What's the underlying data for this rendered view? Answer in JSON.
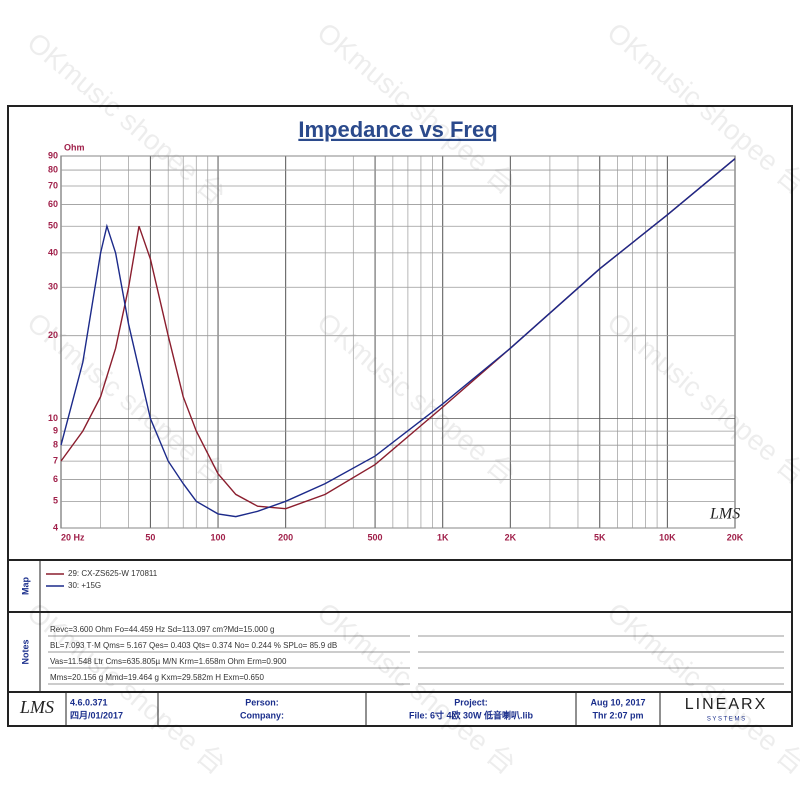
{
  "chart_data": {
    "type": "line",
    "title": "Impedance vs Freq",
    "y_label": "Ohm",
    "xscale": "log",
    "yscale": "log",
    "grid": true,
    "xlim": [
      20,
      20000
    ],
    "ylim": [
      4,
      90
    ],
    "xticks": [
      {
        "value": 20,
        "label": "20  Hz"
      },
      50,
      100,
      200,
      500,
      {
        "value": 1000,
        "label": "1K"
      },
      {
        "value": 2000,
        "label": "2K"
      },
      {
        "value": 5000,
        "label": "5K"
      },
      {
        "value": 10000,
        "label": "10K"
      },
      {
        "value": 20000,
        "label": "20K"
      }
    ],
    "minor_xticks": [
      30,
      40,
      60,
      70,
      80,
      90,
      300,
      400,
      600,
      700,
      800,
      900,
      3000,
      4000,
      6000,
      7000,
      8000,
      9000
    ],
    "yticks": [
      4,
      5,
      6,
      7,
      8,
      9,
      10,
      20,
      30,
      40,
      50,
      60,
      70,
      80,
      90
    ],
    "series": [
      {
        "name": "29: CX-ZS625-W 170811",
        "color": "#8b1e2e",
        "x": [
          20,
          25,
          30,
          35,
          40,
          44.5,
          50,
          60,
          70,
          80,
          100,
          120,
          150,
          200,
          300,
          500,
          1000,
          2000,
          5000,
          10000,
          20000
        ],
        "values": [
          7.0,
          9,
          12,
          18,
          30,
          50,
          38,
          20,
          12,
          9,
          6.3,
          5.3,
          4.8,
          4.7,
          5.3,
          6.8,
          11,
          18,
          35,
          55,
          88
        ]
      },
      {
        "name": "30: +15G",
        "color": "#1c2a8a",
        "x": [
          20,
          25,
          30,
          32,
          35,
          40,
          50,
          60,
          70,
          80,
          100,
          120,
          150,
          200,
          300,
          500,
          1000,
          2000,
          5000,
          10000,
          20000
        ],
        "values": [
          8,
          16,
          40,
          50,
          40,
          22,
          10,
          7,
          5.8,
          5,
          4.5,
          4.4,
          4.6,
          5.0,
          5.8,
          7.3,
          11.3,
          18,
          35,
          55,
          88
        ]
      }
    ]
  },
  "logo": "LMS",
  "watermark": "OKmusic shopee 台",
  "map_label": "Map",
  "notes_label": "Notes",
  "notes": [
    "Revc=3.600 Ohm  Fo=44.459 Hz  Sd=113.097 cm?Md=15.000 g",
    "BL=7.093 T·M  Qms= 5.167  Qes= 0.403  Qts= 0.374  No= 0.244 %  SPLo= 85.9 dB",
    "Vas=11.548 Ltr  Cms=635.805µ M/N  Krm=1.658m Ohm  Erm=0.900",
    "Mms=20.156 g  Mmd=19.464 g  Kxm=29.582m H  Exm=0.650"
  ],
  "footer": {
    "version": "4.6.0.371",
    "build_date": "四月/01/2017",
    "person": "Person:",
    "company": "Company:",
    "project": "Project:",
    "file": "File: 6寸 4欧  30W 低音喇叭.lib",
    "date": "Aug 10, 2017",
    "time": "Thr  2:07 pm",
    "brand": "LINEARX",
    "brand_sub": "S Y S T E M S"
  }
}
